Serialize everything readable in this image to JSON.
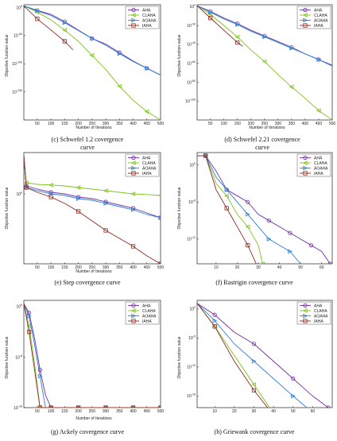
{
  "figure": {
    "series_names": [
      "AHA",
      "CLAHA",
      "AOAHA",
      "IAHA"
    ],
    "colors": {
      "AHA": "#7030a0",
      "CLAHA": "#7fc31c",
      "AOAHA": "#2e7fd6",
      "IAHA": "#8b2a1e"
    }
  },
  "panels": [
    {
      "caption": [
        "(c) Schwefel 1.2 covergence",
        "curve"
      ],
      "xlabel": "Number of Iterations",
      "ylabel": "Objective function value"
    },
    {
      "caption": [
        "(d) Schwefel 2.21 covergence",
        "curve"
      ],
      "xlabel": "Number of Iterations",
      "ylabel": "Objective function value"
    },
    {
      "caption": [
        "(e) Step covergence curve"
      ],
      "xlabel": "Number of Iterations",
      "ylabel": "Objective function value"
    },
    {
      "caption": [
        "(f) Rastrigin covergence curve"
      ],
      "xlabel": "",
      "ylabel": "Objective function value"
    },
    {
      "caption": [
        "(g) Ackely covergence curve"
      ],
      "xlabel": "Number of Iterations",
      "ylabel": "Objective function value"
    },
    {
      "caption": [
        "(h) Griewank covergence curve"
      ],
      "xlabel": "",
      "ylabel": "Objective function value"
    }
  ],
  "chart_data": [
    {
      "type": "line",
      "title": "(c) Schwefel 1.2 covergence curve",
      "xlabel": "Number of Iterations",
      "ylabel": "Objective function value",
      "yscale": "log",
      "xlim": [
        1,
        500
      ],
      "ylim": [
        -200,
        5
      ],
      "xticks": [
        50,
        100,
        150,
        200,
        250,
        300,
        350,
        400,
        450,
        500
      ],
      "yticks": [
        {
          "v": 0,
          "label": "10^0"
        },
        {
          "v": -50,
          "label": "10^-50"
        },
        {
          "v": -100,
          "label": "10^-100"
        },
        {
          "v": -150,
          "label": "10^-150"
        }
      ],
      "legend": "top-right",
      "series": [
        {
          "name": "AHA",
          "x": [
            1,
            50,
            100,
            150,
            200,
            250,
            300,
            350,
            400,
            450,
            500
          ],
          "log10y": [
            3,
            -5,
            -12,
            -25,
            -40,
            -55,
            -65,
            -80,
            -95,
            -108,
            -120
          ]
        },
        {
          "name": "CLAHA",
          "x": [
            1,
            50,
            100,
            150,
            200,
            250,
            300,
            350,
            400,
            450,
            500
          ],
          "log10y": [
            3,
            -8,
            -22,
            -40,
            -60,
            -85,
            -110,
            -140,
            -165,
            -185,
            -200
          ]
        },
        {
          "name": "AOAHA",
          "x": [
            1,
            50,
            100,
            150,
            200,
            250,
            300,
            350,
            400,
            450,
            500
          ],
          "log10y": [
            3,
            -6,
            -14,
            -27,
            -41,
            -55,
            -67,
            -82,
            -96,
            -108,
            -120
          ]
        },
        {
          "name": "IAHA",
          "x": [
            1,
            50,
            100,
            150,
            180
          ],
          "log10y": [
            3,
            -20,
            -40,
            -60,
            -75
          ]
        }
      ]
    },
    {
      "type": "line",
      "title": "(d) Schwefel 2.21 covergence curve",
      "xlabel": "Number of Iterations",
      "ylabel": "Objective function value",
      "yscale": "log",
      "xlim": [
        1,
        500
      ],
      "ylim": [
        -120,
        2
      ],
      "xticks": [
        50,
        100,
        150,
        200,
        250,
        300,
        350,
        400,
        450,
        500
      ],
      "yticks": [
        {
          "v": 0,
          "label": "10^0"
        },
        {
          "v": -20,
          "label": "10^-20"
        },
        {
          "v": -40,
          "label": "10^-40"
        },
        {
          "v": -60,
          "label": "10^-60"
        },
        {
          "v": -80,
          "label": "10^-80"
        },
        {
          "v": -100,
          "label": "10^-100"
        }
      ],
      "legend": "top-right",
      "series": [
        {
          "name": "AHA",
          "x": [
            1,
            50,
            100,
            150,
            200,
            250,
            300,
            350,
            400,
            450,
            500
          ],
          "log10y": [
            1,
            -5,
            -12,
            -18,
            -25,
            -31,
            -37,
            -43,
            -50,
            -56,
            -62
          ]
        },
        {
          "name": "CLAHA",
          "x": [
            1,
            50,
            100,
            150,
            200,
            250,
            300,
            350,
            400,
            450,
            500
          ],
          "log10y": [
            1,
            -8,
            -20,
            -32,
            -46,
            -58,
            -72,
            -85,
            -97,
            -110,
            -120
          ]
        },
        {
          "name": "AOAHA",
          "x": [
            1,
            50,
            100,
            150,
            200,
            250,
            300,
            350,
            400,
            450,
            500
          ],
          "log10y": [
            1,
            -6,
            -13,
            -19,
            -26,
            -32,
            -38,
            -44,
            -50,
            -56,
            -63
          ]
        },
        {
          "name": "IAHA",
          "x": [
            1,
            50,
            100,
            150,
            170
          ],
          "log10y": [
            1,
            -12,
            -25,
            -38,
            -42
          ]
        }
      ]
    },
    {
      "type": "line",
      "title": "(e) Step covergence curve",
      "xlabel": "Number of Iterations",
      "ylabel": "Objective function value",
      "yscale": "log",
      "xlim": [
        1,
        500
      ],
      "ylim": [
        -2.2,
        1.3
      ],
      "xticks": [
        50,
        100,
        150,
        200,
        250,
        300,
        350,
        400,
        450,
        500
      ],
      "yticks": [
        {
          "v": 0,
          "label": "10^0"
        }
      ],
      "legend": "top-right",
      "series": [
        {
          "name": "AHA",
          "x": [
            1,
            10,
            50,
            100,
            150,
            200,
            250,
            300,
            350,
            400,
            450,
            500
          ],
          "log10y": [
            1.2,
            0.25,
            0.15,
            0.05,
            0.0,
            -0.1,
            -0.15,
            -0.25,
            -0.35,
            -0.45,
            -0.6,
            -0.75
          ]
        },
        {
          "name": "CLAHA",
          "x": [
            1,
            10,
            50,
            100,
            150,
            200,
            250,
            300,
            350,
            400,
            450,
            500
          ],
          "log10y": [
            1.2,
            0.35,
            0.3,
            0.28,
            0.25,
            0.2,
            0.15,
            0.1,
            0.05,
            0.0,
            -0.02,
            -0.05
          ]
        },
        {
          "name": "AOAHA",
          "x": [
            1,
            10,
            50,
            100,
            150,
            200,
            250,
            300,
            350,
            400,
            450,
            500
          ],
          "log10y": [
            1.2,
            0.2,
            0.1,
            0.0,
            -0.05,
            -0.15,
            -0.2,
            -0.3,
            -0.4,
            -0.5,
            -0.65,
            -0.75
          ]
        },
        {
          "name": "IAHA",
          "x": [
            1,
            10,
            50,
            100,
            150,
            200,
            250,
            300,
            350,
            400,
            450,
            500
          ],
          "log10y": [
            1.2,
            0.2,
            0.05,
            -0.1,
            -0.3,
            -0.55,
            -0.85,
            -1.15,
            -1.4,
            -1.65,
            -1.95,
            -2.2
          ]
        }
      ]
    },
    {
      "type": "line",
      "title": "(f) Rastrigin covergence curve",
      "xlabel": "",
      "ylabel": "Objective function value",
      "yscale": "log",
      "xlim": [
        1,
        65
      ],
      "ylim": [
        -16,
        2
      ],
      "xticks": [
        10,
        20,
        30,
        40,
        50,
        60
      ],
      "yticks": [
        {
          "v": 0,
          "label": "10^0"
        },
        {
          "v": -6,
          "label": "10^-6"
        },
        {
          "v": -12,
          "label": "10^-12"
        }
      ],
      "legend": "top-right",
      "series": [
        {
          "name": "AHA",
          "x": [
            1,
            5,
            10,
            15,
            20,
            25,
            30,
            35,
            40,
            45,
            50,
            55,
            60,
            64
          ],
          "log10y": [
            1.5,
            1.5,
            -1,
            -4,
            -5,
            -6,
            -8,
            -9,
            -10,
            -11,
            -12,
            -13,
            -14,
            -16
          ]
        },
        {
          "name": "CLAHA",
          "x": [
            1,
            5,
            10,
            15,
            20,
            25,
            30,
            32
          ],
          "log10y": [
            1.5,
            1.5,
            -3,
            -5,
            -8,
            -10,
            -13,
            -16
          ]
        },
        {
          "name": "AOAHA",
          "x": [
            1,
            5,
            10,
            15,
            20,
            25,
            30,
            35,
            40,
            45,
            50
          ],
          "log10y": [
            1.5,
            1.5,
            -2,
            -4,
            -6,
            -8,
            -10,
            -12,
            -13,
            -14,
            -16
          ]
        },
        {
          "name": "IAHA",
          "x": [
            1,
            5,
            10,
            15,
            20,
            25,
            29
          ],
          "log10y": [
            1.5,
            1.5,
            -4,
            -7,
            -10,
            -13,
            -16
          ]
        }
      ]
    },
    {
      "type": "line",
      "title": "(g) Ackely covergence curve",
      "xlabel": "Number of Iterations",
      "ylabel": "Objective function value",
      "yscale": "log",
      "xlim": [
        1,
        500
      ],
      "ylim": [
        -16,
        1
      ],
      "xticks": [
        50,
        100,
        150,
        200,
        250,
        300,
        350,
        400,
        450,
        500
      ],
      "yticks": [
        {
          "v": 0,
          "label": "10^0"
        },
        {
          "v": -8,
          "label": "10^-8"
        },
        {
          "v": -16,
          "label": "10^-16"
        }
      ],
      "legend": "top-right",
      "series": [
        {
          "name": "AHA",
          "x": [
            1,
            20,
            40,
            60,
            80,
            100,
            150,
            200,
            250,
            300,
            350,
            400,
            450,
            500
          ],
          "log10y": [
            0.5,
            -1,
            -5,
            -10,
            -14,
            -16,
            -16,
            -16,
            -16,
            -16,
            -16,
            -16,
            -16,
            -16
          ]
        },
        {
          "name": "CLAHA",
          "x": [
            1,
            20,
            40,
            60,
            80,
            100,
            150,
            200,
            250,
            300,
            350,
            400,
            450,
            500
          ],
          "log10y": [
            0.5,
            -3,
            -9,
            -16,
            -16,
            -16,
            -16,
            -16,
            -16,
            -16,
            -16,
            -16,
            -16,
            -16
          ]
        },
        {
          "name": "AOAHA",
          "x": [
            1,
            20,
            40,
            60,
            80,
            100,
            150,
            200,
            250,
            300,
            350,
            400,
            450,
            500
          ],
          "log10y": [
            0.5,
            -1.5,
            -6,
            -11,
            -16,
            -16,
            -16,
            -16,
            -16,
            -16,
            -16,
            -16,
            -16,
            -16
          ]
        },
        {
          "name": "IAHA",
          "x": [
            1,
            20,
            40,
            60,
            80,
            100,
            150,
            200,
            250,
            300,
            350,
            400,
            450,
            500
          ],
          "log10y": [
            0.5,
            -4,
            -10,
            -16,
            -16,
            -16,
            -16,
            -16,
            -16,
            -16,
            -16,
            -16,
            -16,
            -16
          ]
        }
      ]
    },
    {
      "type": "line",
      "title": "(h) Griewank covergence curve",
      "xlabel": "",
      "ylabel": "Objective function value",
      "yscale": "log",
      "xlim": [
        1,
        70
      ],
      "ylim": [
        -17,
        1.5
      ],
      "xticks": [
        10,
        20,
        30,
        40,
        50,
        60
      ],
      "yticks": [
        {
          "v": 0,
          "label": "10^0"
        },
        {
          "v": -5,
          "label": "10^-5"
        },
        {
          "v": -10,
          "label": "10^-10"
        },
        {
          "v": -15,
          "label": "10^-15"
        }
      ],
      "legend": "top-right",
      "series": [
        {
          "name": "AHA",
          "x": [
            1,
            10,
            20,
            30,
            40,
            50,
            60,
            68
          ],
          "log10y": [
            1,
            -1,
            -4,
            -6,
            -9,
            -12,
            -15,
            -17
          ]
        },
        {
          "name": "CLAHA",
          "x": [
            1,
            10,
            20,
            30,
            38
          ],
          "log10y": [
            1,
            -3,
            -8,
            -13,
            -17
          ]
        },
        {
          "name": "AOAHA",
          "x": [
            1,
            10,
            20,
            30,
            40,
            50,
            57
          ],
          "log10y": [
            1,
            -2,
            -6,
            -9,
            -12,
            -15,
            -17
          ]
        },
        {
          "name": "IAHA",
          "x": [
            1,
            10,
            20,
            30,
            37
          ],
          "log10y": [
            1,
            -3,
            -9,
            -14,
            -17
          ]
        }
      ]
    }
  ]
}
